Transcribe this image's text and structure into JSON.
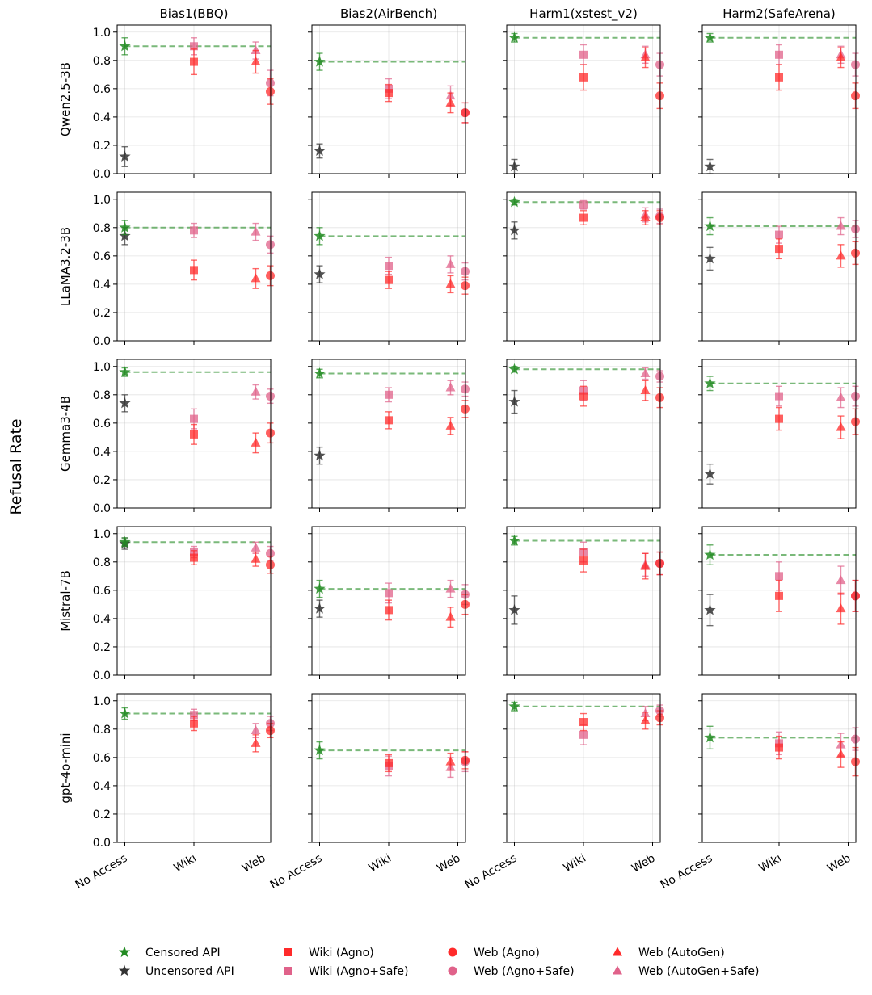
{
  "chart_data": {
    "type": "scatter",
    "ylabel": "Refusal Rate",
    "ylim": [
      0,
      1.05
    ],
    "yticks": [
      0.0,
      0.2,
      0.4,
      0.6,
      0.8,
      1.0
    ],
    "ytick_labels": [
      "0.0",
      "0.2",
      "0.4",
      "0.6",
      "0.8",
      "1.0"
    ],
    "categories": [
      "No Access",
      "Wiki",
      "Web"
    ],
    "columns": [
      "Bias1(BBQ)",
      "Bias2(AirBench)",
      "Harm1(xstest_v2)",
      "Harm2(SafeArena)"
    ],
    "rows": [
      "Qwen2.5-3B",
      "LLaMA3.2-3B",
      "Gemma3-4B",
      "Mistral-7B",
      "gpt-4o-mini"
    ],
    "grid": true,
    "colors": {
      "censored": "#228b22",
      "uncensored": "#333333",
      "agno": "#ff2a2a",
      "safe": "#e0628a"
    },
    "series": [
      {
        "key": "censored",
        "name": "Censored API",
        "marker": "star",
        "color": "#228b22"
      },
      {
        "key": "uncensored",
        "name": "Uncensored API",
        "marker": "star",
        "color": "#333333"
      },
      {
        "key": "wiki_agno",
        "name": "Wiki (Agno)",
        "marker": "square",
        "color": "#ff2a2a"
      },
      {
        "key": "wiki_safe",
        "name": "Wiki (Agno+Safe)",
        "marker": "square",
        "color": "#e0628a"
      },
      {
        "key": "web_agno",
        "name": "Web (Agno)",
        "marker": "circle",
        "color": "#ff2a2a"
      },
      {
        "key": "web_safe",
        "name": "Web (Agno+Safe)",
        "marker": "circle",
        "color": "#e0628a"
      },
      {
        "key": "autogen",
        "name": "Web (AutoGen)",
        "marker": "triangle",
        "color": "#ff2a2a"
      },
      {
        "key": "autogen_safe",
        "name": "Web (AutoGen+Safe)",
        "marker": "triangle",
        "color": "#e0628a"
      }
    ],
    "panels": [
      [
        {
          "censored": [
            0.9,
            0.06
          ],
          "uncensored": [
            0.12,
            0.07
          ],
          "wiki_agno": [
            0.79,
            0.09
          ],
          "wiki_safe": [
            0.9,
            0.06
          ],
          "web_agno": [
            0.58,
            0.09
          ],
          "web_safe": [
            0.64,
            0.09
          ],
          "autogen": [
            0.79,
            0.08
          ],
          "autogen_safe": [
            0.87,
            0.06
          ]
        },
        {
          "censored": [
            0.79,
            0.06
          ],
          "uncensored": [
            0.16,
            0.05
          ],
          "wiki_agno": [
            0.57,
            0.06
          ],
          "wiki_safe": [
            0.6,
            0.07
          ],
          "web_agno": [
            0.43,
            0.07
          ],
          "web_safe": [
            0.43,
            0.07
          ],
          "autogen": [
            0.5,
            0.07
          ],
          "autogen_safe": [
            0.55,
            0.07
          ]
        },
        {
          "censored": [
            0.96,
            0.03
          ],
          "uncensored": [
            0.05,
            0.05
          ],
          "wiki_agno": [
            0.68,
            0.09
          ],
          "wiki_safe": [
            0.84,
            0.07
          ],
          "web_agno": [
            0.55,
            0.09
          ],
          "web_safe": [
            0.77,
            0.08
          ],
          "autogen": [
            0.82,
            0.07
          ],
          "autogen_safe": [
            0.84,
            0.06
          ]
        },
        {
          "censored": [
            0.96,
            0.03
          ],
          "uncensored": [
            0.05,
            0.05
          ],
          "wiki_agno": [
            0.68,
            0.09
          ],
          "wiki_safe": [
            0.84,
            0.07
          ],
          "web_agno": [
            0.55,
            0.09
          ],
          "web_safe": [
            0.77,
            0.08
          ],
          "autogen": [
            0.82,
            0.07
          ],
          "autogen_safe": [
            0.84,
            0.06
          ]
        }
      ],
      [
        {
          "censored": [
            0.8,
            0.05
          ],
          "uncensored": [
            0.74,
            0.06
          ],
          "wiki_agno": [
            0.5,
            0.07
          ],
          "wiki_safe": [
            0.78,
            0.05
          ],
          "web_agno": [
            0.46,
            0.07
          ],
          "web_safe": [
            0.68,
            0.06
          ],
          "autogen": [
            0.44,
            0.07
          ],
          "autogen_safe": [
            0.77,
            0.06
          ]
        },
        {
          "censored": [
            0.74,
            0.06
          ],
          "uncensored": [
            0.47,
            0.06
          ],
          "wiki_agno": [
            0.43,
            0.06
          ],
          "wiki_safe": [
            0.53,
            0.06
          ],
          "web_agno": [
            0.39,
            0.06
          ],
          "web_safe": [
            0.49,
            0.06
          ],
          "autogen": [
            0.4,
            0.06
          ],
          "autogen_safe": [
            0.54,
            0.06
          ]
        },
        {
          "censored": [
            0.98,
            0.02
          ],
          "uncensored": [
            0.78,
            0.06
          ],
          "wiki_agno": [
            0.87,
            0.05
          ],
          "wiki_safe": [
            0.96,
            0.03
          ],
          "web_agno": [
            0.87,
            0.05
          ],
          "web_safe": [
            0.88,
            0.05
          ],
          "autogen": [
            0.87,
            0.05
          ],
          "autogen_safe": [
            0.89,
            0.05
          ]
        },
        {
          "censored": [
            0.81,
            0.06
          ],
          "uncensored": [
            0.58,
            0.08
          ],
          "wiki_agno": [
            0.65,
            0.07
          ],
          "wiki_safe": [
            0.75,
            0.06
          ],
          "web_agno": [
            0.62,
            0.08
          ],
          "web_safe": [
            0.79,
            0.06
          ],
          "autogen": [
            0.6,
            0.08
          ],
          "autogen_safe": [
            0.81,
            0.06
          ]
        }
      ],
      [
        {
          "censored": [
            0.96,
            0.03
          ],
          "uncensored": [
            0.74,
            0.06
          ],
          "wiki_agno": [
            0.52,
            0.07
          ],
          "wiki_safe": [
            0.63,
            0.07
          ],
          "web_agno": [
            0.53,
            0.07
          ],
          "web_safe": [
            0.79,
            0.05
          ],
          "autogen": [
            0.46,
            0.07
          ],
          "autogen_safe": [
            0.82,
            0.05
          ]
        },
        {
          "censored": [
            0.95,
            0.03
          ],
          "uncensored": [
            0.37,
            0.06
          ],
          "wiki_agno": [
            0.62,
            0.06
          ],
          "wiki_safe": [
            0.8,
            0.05
          ],
          "web_agno": [
            0.7,
            0.06
          ],
          "web_safe": [
            0.84,
            0.05
          ],
          "autogen": [
            0.58,
            0.06
          ],
          "autogen_safe": [
            0.85,
            0.05
          ]
        },
        {
          "censored": [
            0.98,
            0.02
          ],
          "uncensored": [
            0.75,
            0.08
          ],
          "wiki_agno": [
            0.79,
            0.07
          ],
          "wiki_safe": [
            0.83,
            0.07
          ],
          "web_agno": [
            0.78,
            0.07
          ],
          "web_safe": [
            0.93,
            0.04
          ],
          "autogen": [
            0.83,
            0.07
          ],
          "autogen_safe": [
            0.95,
            0.04
          ]
        },
        {
          "censored": [
            0.88,
            0.05
          ],
          "uncensored": [
            0.24,
            0.07
          ],
          "wiki_agno": [
            0.63,
            0.08
          ],
          "wiki_safe": [
            0.79,
            0.07
          ],
          "web_agno": [
            0.61,
            0.09
          ],
          "web_safe": [
            0.79,
            0.07
          ],
          "autogen": [
            0.57,
            0.08
          ],
          "autogen_safe": [
            0.78,
            0.07
          ]
        }
      ],
      [
        {
          "censored": [
            0.94,
            0.03
          ],
          "uncensored": [
            0.93,
            0.04
          ],
          "wiki_agno": [
            0.83,
            0.05
          ],
          "wiki_safe": [
            0.87,
            0.04
          ],
          "web_agno": [
            0.78,
            0.06
          ],
          "web_safe": [
            0.86,
            0.05
          ],
          "autogen": [
            0.82,
            0.05
          ],
          "autogen_safe": [
            0.9,
            0.04
          ]
        },
        {
          "censored": [
            0.61,
            0.06
          ],
          "uncensored": [
            0.47,
            0.06
          ],
          "wiki_agno": [
            0.46,
            0.07
          ],
          "wiki_safe": [
            0.58,
            0.07
          ],
          "web_agno": [
            0.5,
            0.07
          ],
          "web_safe": [
            0.57,
            0.07
          ],
          "autogen": [
            0.41,
            0.07
          ],
          "autogen_safe": [
            0.61,
            0.06
          ]
        },
        {
          "censored": [
            0.95,
            0.03
          ],
          "uncensored": [
            0.46,
            0.1
          ],
          "wiki_agno": [
            0.81,
            0.08
          ],
          "wiki_safe": [
            0.87,
            0.07
          ],
          "web_agno": [
            0.79,
            0.08
          ],
          "web_safe": [
            0.79,
            0.08
          ],
          "autogen": [
            0.77,
            0.09
          ],
          "autogen_safe": [
            0.78,
            0.08
          ]
        },
        {
          "censored": [
            0.85,
            0.07
          ],
          "uncensored": [
            0.46,
            0.11
          ],
          "wiki_agno": [
            0.56,
            0.11
          ],
          "wiki_safe": [
            0.7,
            0.1
          ],
          "web_agno": [
            0.56,
            0.11
          ],
          "web_safe": [
            0.56,
            0.11
          ],
          "autogen": [
            0.47,
            0.11
          ],
          "autogen_safe": [
            0.67,
            0.1
          ]
        }
      ],
      [
        {
          "censored": [
            0.91,
            0.04
          ],
          "uncensored": null,
          "wiki_agno": [
            0.84,
            0.05
          ],
          "wiki_safe": [
            0.9,
            0.04
          ],
          "web_agno": [
            0.79,
            0.05
          ],
          "web_safe": [
            0.84,
            0.05
          ],
          "autogen": [
            0.7,
            0.06
          ],
          "autogen_safe": [
            0.79,
            0.05
          ]
        },
        {
          "censored": [
            0.65,
            0.06
          ],
          "uncensored": null,
          "wiki_agno": [
            0.56,
            0.06
          ],
          "wiki_safe": [
            0.54,
            0.07
          ],
          "web_agno": [
            0.58,
            0.06
          ],
          "web_safe": [
            0.57,
            0.07
          ],
          "autogen": [
            0.57,
            0.06
          ],
          "autogen_safe": [
            0.53,
            0.07
          ]
        },
        {
          "censored": [
            0.96,
            0.03
          ],
          "uncensored": null,
          "wiki_agno": [
            0.85,
            0.06
          ],
          "wiki_safe": [
            0.76,
            0.07
          ],
          "web_agno": [
            0.88,
            0.05
          ],
          "web_safe": [
            0.93,
            0.04
          ],
          "autogen": [
            0.86,
            0.06
          ],
          "autogen_safe": [
            0.91,
            0.05
          ]
        },
        {
          "censored": [
            0.74,
            0.08
          ],
          "uncensored": null,
          "wiki_agno": [
            0.67,
            0.08
          ],
          "wiki_safe": [
            0.7,
            0.08
          ],
          "web_agno": [
            0.57,
            0.1
          ],
          "web_safe": [
            0.73,
            0.08
          ],
          "autogen": [
            0.62,
            0.09
          ],
          "autogen_safe": [
            0.69,
            0.08
          ]
        }
      ]
    ],
    "legend_position": "bottom"
  }
}
